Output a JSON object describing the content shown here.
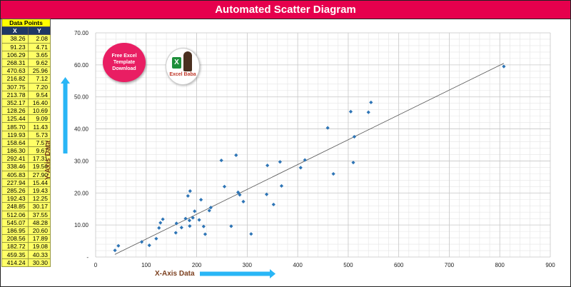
{
  "title": "Automated Scatter Diagram",
  "table": {
    "header": "Data Points",
    "col_x": "X",
    "col_y": "Y",
    "rows": [
      [
        "38.26",
        "2.08"
      ],
      [
        "91.23",
        "4.71"
      ],
      [
        "106.29",
        "3.65"
      ],
      [
        "268.31",
        "9.62"
      ],
      [
        "470.63",
        "25.96"
      ],
      [
        "216.82",
        "7.12"
      ],
      [
        "307.75",
        "7.20"
      ],
      [
        "213.78",
        "9.54"
      ],
      [
        "352.17",
        "16.40"
      ],
      [
        "128.26",
        "10.69"
      ],
      [
        "125.44",
        "9.09"
      ],
      [
        "185.70",
        "11.43"
      ],
      [
        "119.93",
        "5.73"
      ],
      [
        "158.64",
        "7.57"
      ],
      [
        "186.30",
        "9.67"
      ],
      [
        "292.41",
        "17.31"
      ],
      [
        "338.46",
        "19.56"
      ],
      [
        "405.83",
        "27.90"
      ],
      [
        "227.94",
        "15.44"
      ],
      [
        "285.26",
        "19.43"
      ],
      [
        "192.43",
        "12.25"
      ],
      [
        "248.85",
        "30.17"
      ],
      [
        "512.06",
        "37.55"
      ],
      [
        "545.07",
        "48.28"
      ],
      [
        "186.95",
        "20.60"
      ],
      [
        "208.56",
        "17.89"
      ],
      [
        "182.72",
        "19.08"
      ],
      [
        "459.35",
        "40.33"
      ],
      [
        "414.24",
        "30.30"
      ]
    ]
  },
  "badge": "Free Excel Template Download",
  "logo": {
    "text": "Excel Baba",
    "mark": "X"
  },
  "colors": {
    "title_bg": "#e6004d",
    "marker": "#2e75b6",
    "arrow": "#29b6f6",
    "table_fill": "#ffff66",
    "header_fill": "#1f3864"
  },
  "chart_data": {
    "type": "scatter",
    "xlabel": "X-Axis Data",
    "ylabel": "Y-Axis Data",
    "xlim": [
      0,
      900
    ],
    "ylim": [
      0,
      70
    ],
    "x_ticks": [
      "0",
      "100",
      "200",
      "300",
      "400",
      "500",
      "600",
      "700",
      "800",
      "900"
    ],
    "y_ticks": [
      "-",
      "10.00",
      "20.00",
      "30.00",
      "40.00",
      "50.00",
      "60.00",
      "70.00"
    ],
    "grid": true,
    "trendline": {
      "x": [
        38,
        808
      ],
      "y": [
        0.8,
        60.5
      ]
    },
    "points": [
      [
        38.26,
        2.08
      ],
      [
        91.23,
        4.71
      ],
      [
        106.29,
        3.65
      ],
      [
        268.31,
        9.62
      ],
      [
        470.63,
        25.96
      ],
      [
        216.82,
        7.12
      ],
      [
        307.75,
        7.2
      ],
      [
        213.78,
        9.54
      ],
      [
        352.17,
        16.4
      ],
      [
        128.26,
        10.69
      ],
      [
        125.44,
        9.09
      ],
      [
        185.7,
        11.43
      ],
      [
        119.93,
        5.73
      ],
      [
        158.64,
        7.57
      ],
      [
        186.3,
        9.67
      ],
      [
        292.41,
        17.31
      ],
      [
        338.46,
        19.56
      ],
      [
        405.83,
        27.9
      ],
      [
        227.94,
        15.44
      ],
      [
        285.26,
        19.43
      ],
      [
        192.43,
        12.25
      ],
      [
        248.85,
        30.17
      ],
      [
        512.06,
        37.55
      ],
      [
        545.07,
        48.28
      ],
      [
        186.95,
        20.6
      ],
      [
        208.56,
        17.89
      ],
      [
        182.72,
        19.08
      ],
      [
        459.35,
        40.33
      ],
      [
        414.24,
        30.3
      ],
      [
        45,
        3.5
      ],
      [
        133,
        11.8
      ],
      [
        160,
        10.5
      ],
      [
        170,
        9.2
      ],
      [
        178,
        12.0
      ],
      [
        196,
        14.3
      ],
      [
        205,
        11.6
      ],
      [
        225,
        14.5
      ],
      [
        255,
        22.0
      ],
      [
        278,
        31.8
      ],
      [
        282,
        20.2
      ],
      [
        340,
        28.6
      ],
      [
        365,
        29.7
      ],
      [
        368,
        22.2
      ],
      [
        505,
        45.4
      ],
      [
        510,
        29.5
      ],
      [
        540,
        45.2
      ],
      [
        808,
        59.5
      ]
    ]
  }
}
